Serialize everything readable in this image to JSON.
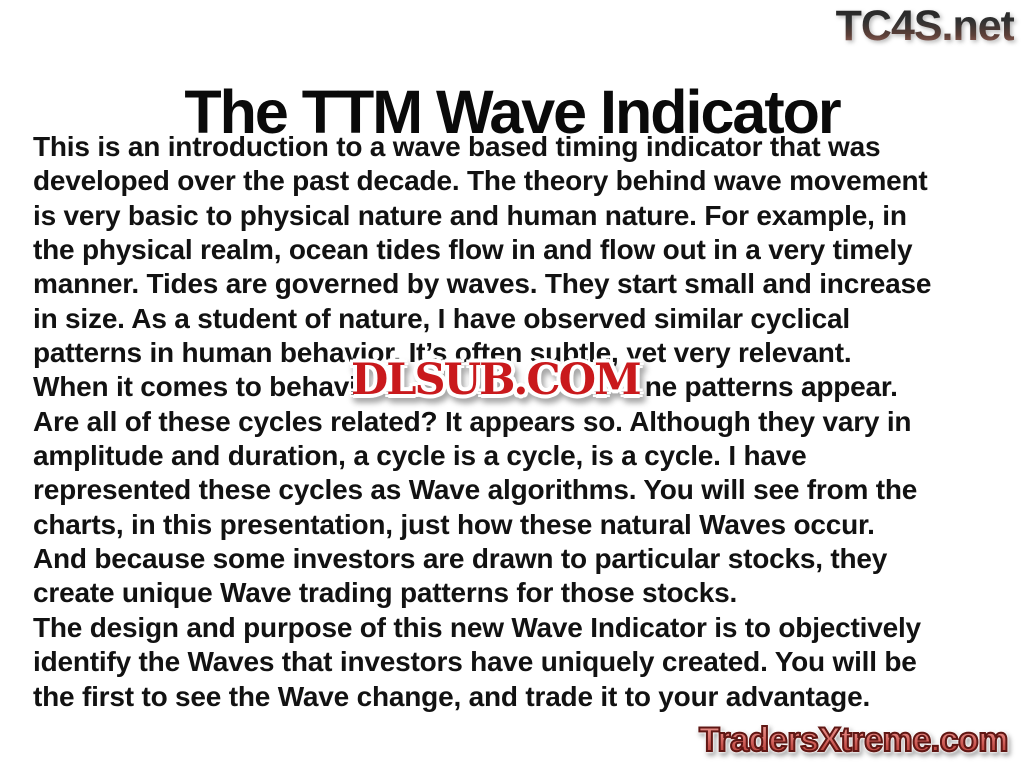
{
  "branding": {
    "tc4s_watermark": "TC4S.net",
    "dlsub_watermark": "DLSUB.COM",
    "tradersxtreme_watermark": "TradersXtreme.com"
  },
  "slide": {
    "title": "The TTM Wave Indicator",
    "body_lines": [
      "This is an introduction to a wave based timing indicator that was",
      "developed over the past decade. The theory behind wave movement",
      "is very basic to physical nature and human nature. For example, in",
      "the physical realm, ocean tides flow in and flow out in a very timely",
      "manner. Tides are governed by waves. They start small and increase",
      "in size. As a student of nature, I have observed similar cyclical",
      "patterns in human behavior. It’s often subtle, yet very relevant."
    ],
    "obscured_line": {
      "left": "When it comes to behavi",
      "right": "ne patterns appear."
    },
    "body_lines_after": [
      "Are all of these cycles related? It appears so. Although they vary in",
      "amplitude and duration, a cycle is a cycle, is a cycle. I have",
      "represented these cycles as Wave algorithms. You will see from the",
      "charts, in this presentation, just how these natural Waves occur.",
      "And because some investors are drawn to particular stocks, they",
      "create unique Wave trading patterns for those stocks.",
      "The design and purpose of this new Wave Indicator is to objectively",
      "identify the Waves that investors have uniquely created. You will be",
      "the first to see the Wave change, and trade it to your advantage."
    ],
    "colors": {
      "body_text": "#121212",
      "title_text": "#0a0a0a",
      "dlsub_red": "#c9191c",
      "tradersxtreme_red": "#c5504a",
      "tradersxtreme_outline": "#5f1714",
      "tc4s_gradient_top": "#1f1f1f",
      "tc4s_gradient_bottom": "#b28a80",
      "background": "#ffffff"
    }
  }
}
